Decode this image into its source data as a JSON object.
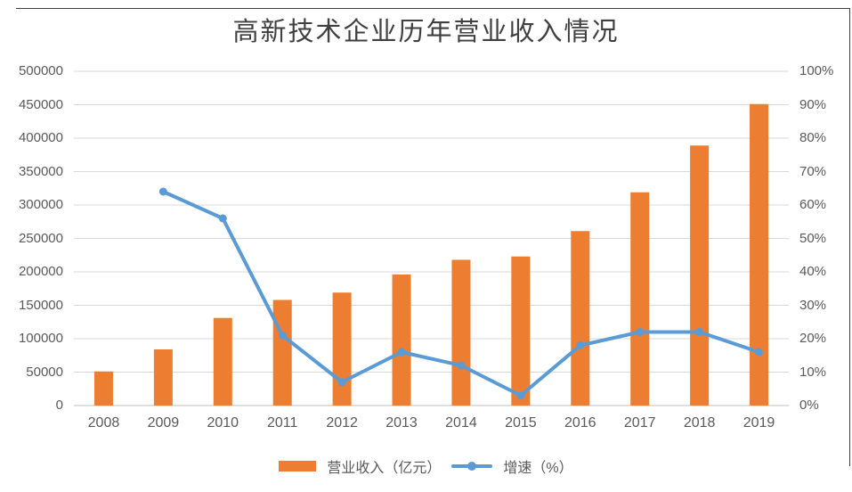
{
  "title": "高新技术企业历年营业收入情况",
  "colors": {
    "bar_orange": "#ED7D31",
    "line_blue": "#5B9BD5",
    "gridline": "#D9D9D9",
    "axis_line": "#BFBFBF",
    "tick_text": "#595959",
    "title_text": "#404040",
    "frame_border": "#404040"
  },
  "chart_data": {
    "type": "combo-bar-line",
    "title": "高新技术企业历年营业收入情况",
    "categories": [
      "2008",
      "2009",
      "2010",
      "2011",
      "2012",
      "2013",
      "2014",
      "2015",
      "2016",
      "2017",
      "2018",
      "2019"
    ],
    "series": [
      {
        "name": "营业收入（亿元）",
        "type": "bar",
        "axis": "left",
        "values": [
          51000,
          84000,
          131000,
          158000,
          169000,
          196000,
          218000,
          223000,
          261000,
          319000,
          389000,
          451000
        ]
      },
      {
        "name": "增速（%）",
        "type": "line",
        "axis": "right",
        "values": [
          null,
          64,
          56,
          21,
          7,
          16,
          12,
          3,
          18,
          22,
          22,
          16
        ]
      }
    ],
    "left_axis": {
      "min": 0,
      "max": 500000,
      "step": 50000,
      "ticks": [
        "0",
        "50000",
        "100000",
        "150000",
        "200000",
        "250000",
        "300000",
        "350000",
        "400000",
        "450000",
        "500000"
      ]
    },
    "right_axis": {
      "min": 0,
      "max": 100,
      "step": 10,
      "ticks": [
        "0%",
        "10%",
        "20%",
        "30%",
        "40%",
        "50%",
        "60%",
        "70%",
        "80%",
        "90%",
        "100%"
      ]
    },
    "grid": true,
    "legend_position": "bottom"
  },
  "legend": {
    "items": [
      {
        "label": "营业收入（亿元）",
        "swatch": "bar"
      },
      {
        "label": "增速（%）",
        "swatch": "line"
      }
    ]
  }
}
